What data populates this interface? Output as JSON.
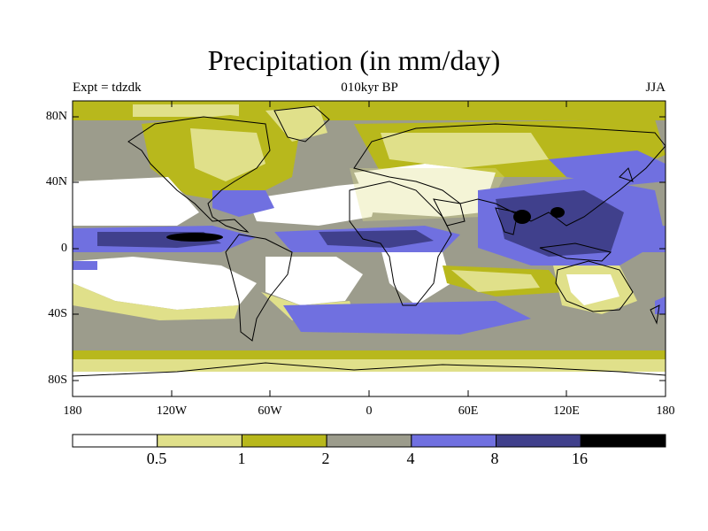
{
  "title": "Precipitation (in mm/day)",
  "subtitle_left": "Expt = tdzdk",
  "subtitle_center": "010kyr BP",
  "subtitle_right": "JJA",
  "lat_labels": [
    "80N",
    "40N",
    "0",
    "40S",
    "80S"
  ],
  "lon_labels": [
    "180",
    "120W",
    "60W",
    "0",
    "60E",
    "120E",
    "180"
  ],
  "colorbar": {
    "labels": [
      "0.5",
      "1",
      "2",
      "4",
      "8",
      "16"
    ],
    "colors": [
      "#ffffff",
      "#e0e08a",
      "#b8b81c",
      "#9c9c8c",
      "#7070e0",
      "#40408c",
      "#000000"
    ]
  },
  "palette": {
    "white": "#ffffff",
    "light_yellow": "#e0e08a",
    "olive": "#b8b81c",
    "gray": "#9c9c8c",
    "blue": "#7070e0",
    "dark_blue": "#40408c",
    "black": "#000000",
    "coast": "#000000"
  }
}
